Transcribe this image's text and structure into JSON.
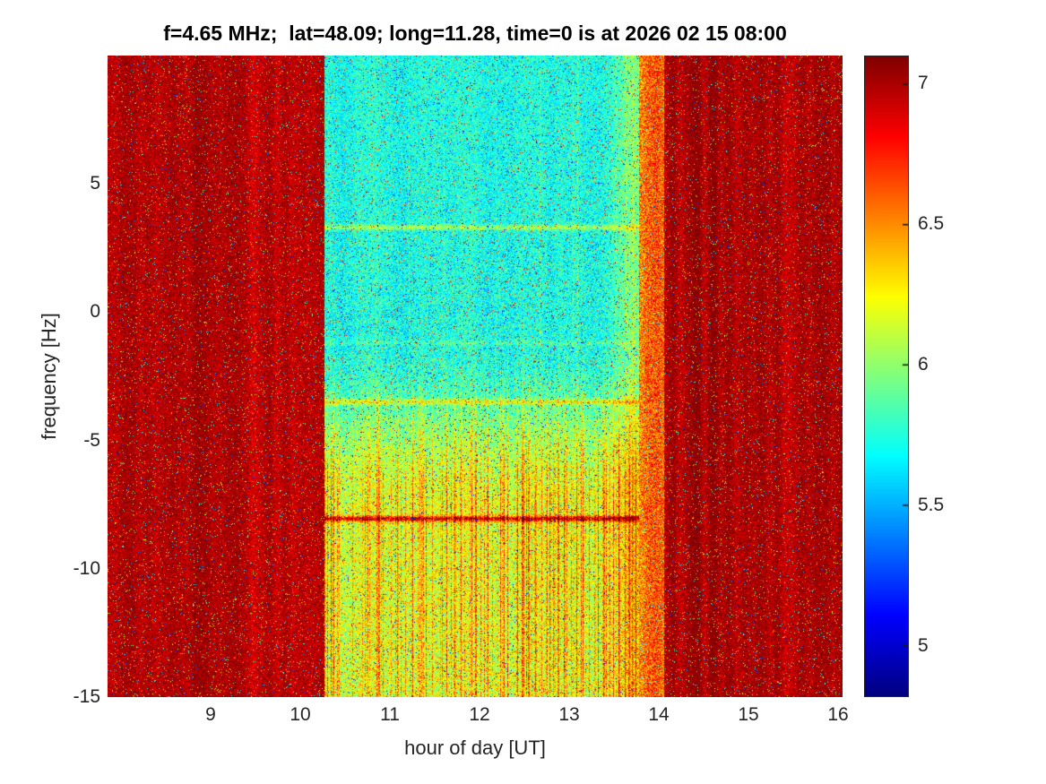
{
  "chart_data": {
    "type": "heatmap",
    "title": "f=4.65 MHz;  lat=48.09; long=11.28, time=0 is at 2026 02 15 08:00",
    "xlabel": "hour of day [UT]",
    "ylabel": "frequency [Hz]",
    "xlim": [
      7.85,
      16.05
    ],
    "ylim": [
      -15,
      10
    ],
    "xticks": [
      9,
      10,
      11,
      12,
      13,
      14,
      15,
      16
    ],
    "yticks": [
      5,
      0,
      -5,
      -10,
      -15
    ],
    "grid": false,
    "colorbar": {
      "min": 4.82,
      "max": 7.1,
      "ticks": [
        7,
        6.5,
        6,
        5.5,
        5
      ],
      "colormap": "jet",
      "position": "right"
    },
    "regions": [
      {
        "hours": [
          7.85,
          10.27
        ],
        "value_range": [
          6.8,
          7.1
        ],
        "character": "saturated dark-red speckle noise with faint vertical banding"
      },
      {
        "hours": [
          10.27,
          13.78
        ],
        "value_range": [
          5.5,
          6.5
        ],
        "character": "depressed cyan/green noisy band; greener-yellow below 0 Hz with dense orange-red vertical streaks below -5 Hz"
      },
      {
        "hours": [
          13.78,
          14.06
        ],
        "value_range": [
          6.3,
          7.0
        ],
        "character": "orange-red transition fringe"
      },
      {
        "hours": [
          14.06,
          16.05
        ],
        "value_range": [
          6.8,
          7.1
        ],
        "character": "saturated dark-red noise with pronounced vertical striping"
      }
    ],
    "horizontal_features_hz": [
      3.3,
      -1.2,
      -3.5,
      -8.05
    ],
    "texture": {
      "seed": 42,
      "event_start": 10.27,
      "event_end": 13.78,
      "fringe_end": 14.06,
      "outer": {
        "base": 6.99,
        "noise": 0.15,
        "stripe_amp": 0.09,
        "right_stripe_mult": 1.8,
        "speckle_prob": 0.05,
        "speckle_min": 5.2,
        "speckle_max": 6.85
      },
      "fringe": {
        "base": 6.6,
        "noise": 0.28,
        "speckle_prob": 0.09,
        "speckle_min": 5.3,
        "speckle_max": 7.0
      },
      "event": {
        "top_base": 5.74,
        "bottom_base": 6.16,
        "top_noise": 0.2,
        "bottom_noise": 0.3,
        "stripe_amp": 0.05,
        "blue_speck_prob": 0.018,
        "blue_min": 4.85,
        "blue_max": 5.35,
        "hot_speck_prob": 0.028,
        "hot_min": 6.45,
        "hot_max": 7.05,
        "streak_prob": 0.3,
        "streak_amp": 0.7,
        "full_streak_prob": 0.05,
        "full_streak_amp": 0.2,
        "right_warm_start": 13.3,
        "right_warm_span": 0.48,
        "right_warm_amp": 0.3
      },
      "hlines": [
        {
          "y": 3.3,
          "amp": 0.4,
          "halfwidth": 0.1
        },
        {
          "y": -1.2,
          "amp": 0.15,
          "halfwidth": 0.09
        },
        {
          "y": -3.5,
          "amp": 0.45,
          "halfwidth": 0.11
        },
        {
          "y": -8.05,
          "amp": 0.95,
          "halfwidth": 0.11
        }
      ]
    }
  }
}
